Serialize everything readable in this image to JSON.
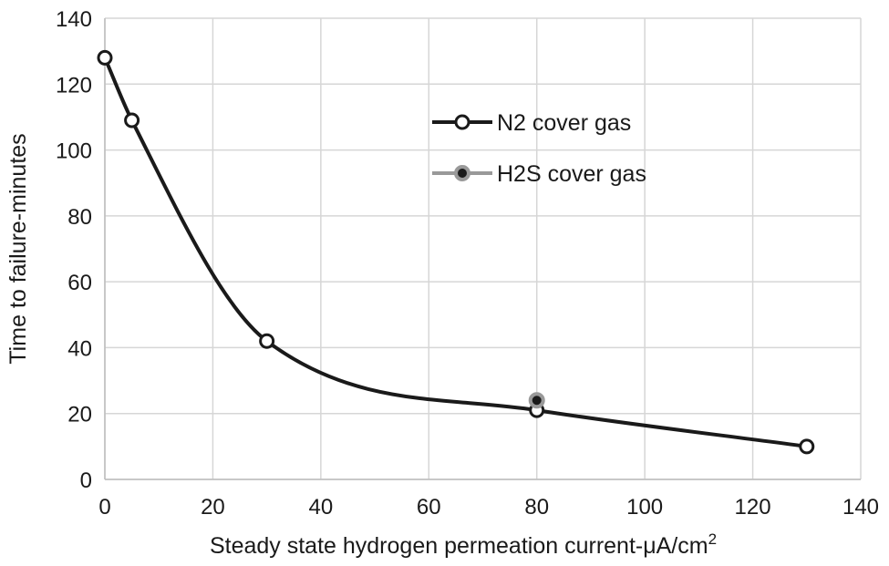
{
  "chart_data": {
    "type": "line",
    "xlabel": "Steady state hydrogen permeation current-μA/cm",
    "xlabel_sup": "2",
    "ylabel": "Time to failure-minutes",
    "xlim": [
      0,
      140
    ],
    "ylim": [
      0,
      140
    ],
    "xticks": [
      0,
      20,
      40,
      60,
      80,
      100,
      120,
      140
    ],
    "yticks": [
      0,
      20,
      40,
      60,
      80,
      100,
      120,
      140
    ],
    "grid": true,
    "legend_position": "top-right",
    "series": [
      {
        "name": "N2 cover gas",
        "color": "#1a1a1a",
        "marker": "open-circle",
        "smooth": true,
        "x": [
          0,
          5,
          30,
          80,
          130
        ],
        "y": [
          128,
          109,
          42,
          21,
          10
        ]
      },
      {
        "name": "H2S cover gas",
        "color": "#999999",
        "marker": "filled-circle",
        "smooth": false,
        "x": [
          80
        ],
        "y": [
          24
        ]
      }
    ]
  }
}
